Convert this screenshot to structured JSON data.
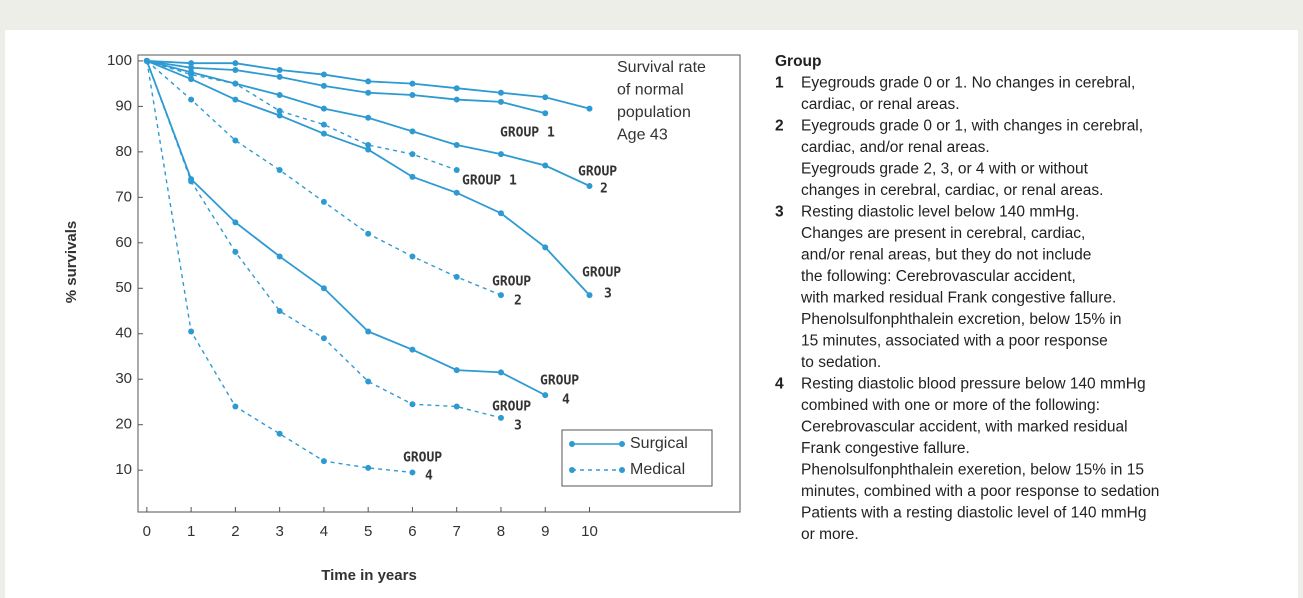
{
  "chart_data": {
    "type": "line",
    "x_label": "Time in years",
    "y_label": "% survivals",
    "x": [
      0,
      1,
      2,
      3,
      4,
      5,
      6,
      7,
      8,
      9,
      10
    ],
    "xlim": [
      -0.2,
      13.4
    ],
    "ylim": [
      0.8,
      101.3
    ],
    "xticks": [
      0,
      1,
      2,
      3,
      4,
      5,
      6,
      7,
      8,
      9,
      10
    ],
    "yticks": [
      10,
      20,
      30,
      40,
      50,
      60,
      70,
      80,
      90,
      100
    ],
    "color": "#2e9ad2",
    "legend": [
      {
        "name": "Surgical",
        "dashed": false
      },
      {
        "name": "Medical",
        "dashed": true
      }
    ],
    "series": [
      {
        "legend": 0,
        "values": [
          100,
          99.5,
          99.5,
          98,
          97,
          95.5,
          95,
          94,
          93,
          92,
          89.5
        ]
      },
      {
        "legend": 0,
        "values": [
          100,
          98.5,
          98,
          96.5,
          94.5,
          93,
          92.5,
          91.5,
          91,
          88.5,
          null
        ]
      },
      {
        "legend": 1,
        "values": [
          100,
          97,
          95,
          89,
          86,
          81.5,
          79.5,
          76,
          null,
          null,
          null
        ]
      },
      {
        "legend": 0,
        "values": [
          100,
          97.5,
          95,
          92.5,
          89.5,
          87.5,
          84.5,
          81.5,
          79.5,
          77,
          72.5
        ]
      },
      {
        "legend": 0,
        "values": [
          100,
          96,
          91.5,
          88,
          84,
          80.5,
          74.5,
          71,
          66.5,
          59,
          48.5
        ]
      },
      {
        "legend": 1,
        "values": [
          100,
          91.5,
          82.5,
          76,
          69,
          62,
          57,
          52.5,
          48.5,
          null,
          null
        ]
      },
      {
        "legend": 0,
        "values": [
          100,
          74,
          64.5,
          57,
          50,
          40.5,
          36.5,
          32,
          31.5,
          26.5,
          null
        ]
      },
      {
        "legend": 1,
        "values": [
          100,
          73.5,
          58,
          45,
          39,
          29.5,
          24.5,
          24,
          21.5,
          null,
          null
        ]
      },
      {
        "legend": 1,
        "values": [
          100,
          40.5,
          24,
          18,
          12,
          10.5,
          9.5,
          null,
          null,
          null,
          null
        ]
      }
    ],
    "annotations": [
      [
        "Survival rate",
        "of normal",
        "population",
        "Age 43"
      ],
      [
        "GROUP 1"
      ],
      [
        "GROUP 1"
      ],
      [
        "GROUP",
        "2"
      ],
      [
        "GROUP",
        "3"
      ],
      [
        "GROUP",
        "2"
      ],
      [
        "GROUP",
        "4"
      ],
      [
        "GROUP",
        "3"
      ],
      [
        "GROUP",
        "4"
      ]
    ]
  },
  "side_panel": {
    "title": "Group",
    "items": [
      {
        "number": "1",
        "lines": [
          "Eyegrouds grade 0 or 1. No changes in cerebral,",
          "cardiac, or renal areas."
        ]
      },
      {
        "number": "2",
        "lines": [
          "Eyegrouds grade 0 or 1, with changes in cerebral,",
          "cardiac, and/or renal areas.",
          "Eyegrouds grade 2, 3, or 4 with or without",
          "changes in cerebral, cardiac, or renal areas."
        ]
      },
      {
        "number": "3",
        "lines": [
          "Resting diastolic level below 140 mmHg.",
          "Changes are present in cerebral, cardiac,",
          "and/or renal areas, but they do not include",
          "the following: Cerebrovascular accident,",
          "with marked residual Frank congestive fallure.",
          "Phenolsulfonphthalein excretion, below 15% in",
          "15 minutes, associated with a poor response",
          "to sedation."
        ]
      },
      {
        "number": "4",
        "lines": [
          "Resting diastolic blood pressure below 140 mmHg",
          "combined with one or more of the following:",
          "Cerebrovascular accident, with marked residual",
          "Frank congestive fallure.",
          "Phenolsulfonphthalein exeretion, below 15% in 15",
          "minutes, combined with a poor response to sedation",
          "Patients with a resting diastolic level of 140 mmHg",
          "or more."
        ]
      }
    ]
  }
}
